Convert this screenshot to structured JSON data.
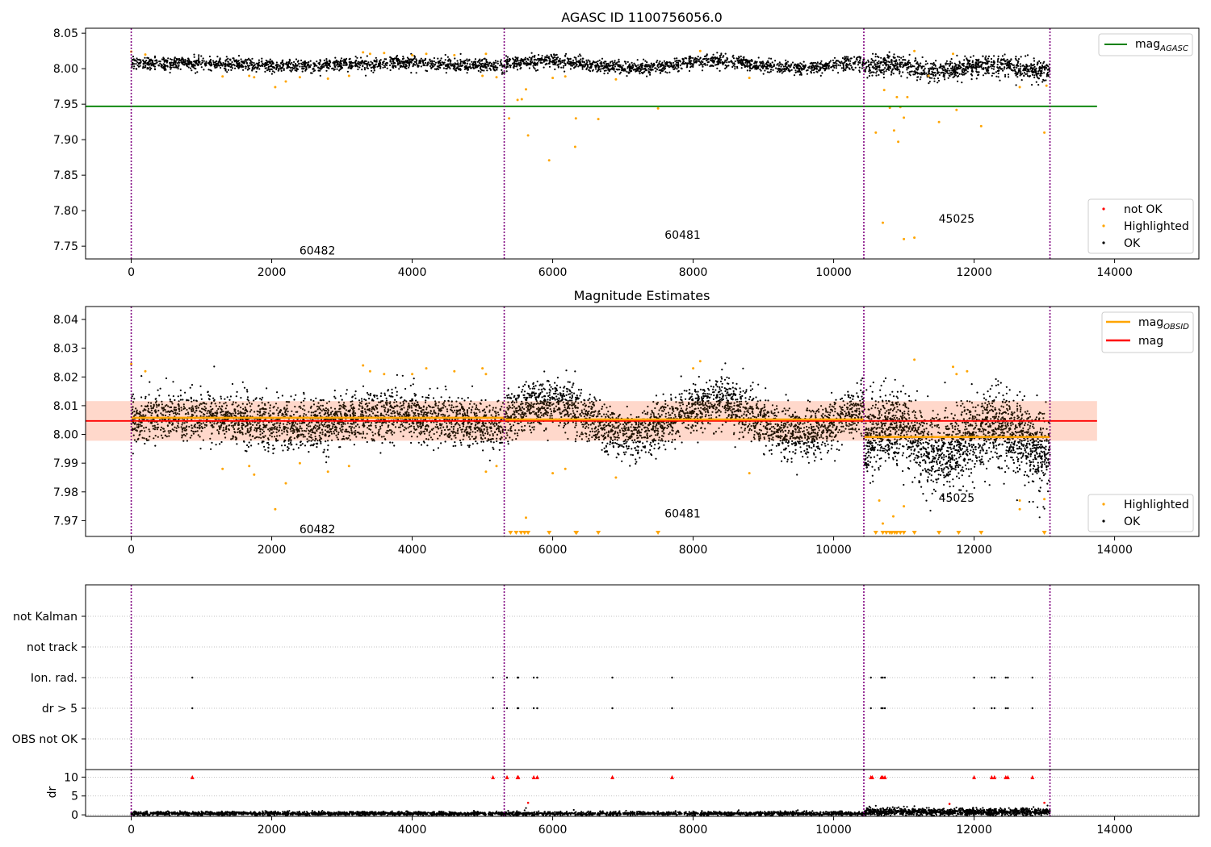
{
  "colors": {
    "ok": "#000000",
    "highlighted": "#ffa500",
    "not_ok": "#ff0000",
    "mag_agasc": "#008000",
    "mag_obsid": "#ffa500",
    "mag": "#ff0000",
    "obsid_divider": "#800080",
    "band": "#ffc0cb"
  },
  "chart_data": [
    {
      "type": "scatter",
      "title": "AGASC ID 1100756056.0",
      "xlim": [
        -650,
        15200
      ],
      "ylim": [
        7.732,
        8.057
      ],
      "x_ticks": [
        0,
        2000,
        4000,
        6000,
        8000,
        10000,
        12000,
        14000
      ],
      "x_tick_labels": [
        "0",
        "2000",
        "4000",
        "6000",
        "8000",
        "10000",
        "12000",
        "14000"
      ],
      "y_ticks": [
        7.75,
        7.8,
        7.85,
        7.9,
        7.95,
        8.0,
        8.05
      ],
      "y_tick_labels": [
        "7.75",
        "7.80",
        "7.85",
        "7.90",
        "7.95",
        "8.00",
        "8.05"
      ],
      "obsid_boundaries": [
        0,
        5310,
        10430,
        13080
      ],
      "obsid_labels": [
        {
          "text": "60482",
          "x": 2650,
          "y": 7.744
        },
        {
          "text": "60481",
          "x": 7850,
          "y": 7.766
        },
        {
          "text": "45025",
          "x": 11750,
          "y": 7.789
        }
      ],
      "mag_agasc": {
        "value": 7.947,
        "x_range": [
          -650,
          13750
        ]
      },
      "ok_segments": [
        {
          "x0": 0,
          "x1": 5310,
          "n": 1400,
          "center": 8.006,
          "spread": 0.0045,
          "wave_amp": 0.002,
          "wave_period": 3000,
          "seed": 11
        },
        {
          "x0": 5310,
          "x1": 10430,
          "n": 1400,
          "center": 8.006,
          "spread": 0.0045,
          "wave_amp": 0.005,
          "wave_period": 2400,
          "seed": 12
        },
        {
          "x0": 10430,
          "x1": 13080,
          "n": 900,
          "center": 8.001,
          "spread": 0.007,
          "wave_amp": 0.004,
          "wave_period": 1500,
          "seed": 13
        }
      ],
      "highlighted": [
        [
          0,
          8.024
        ],
        [
          200,
          8.02
        ],
        [
          1300,
          7.989
        ],
        [
          1680,
          7.99
        ],
        [
          1750,
          7.988
        ],
        [
          2050,
          7.974
        ],
        [
          2200,
          7.982
        ],
        [
          2400,
          7.988
        ],
        [
          2800,
          7.986
        ],
        [
          3100,
          7.99
        ],
        [
          3300,
          8.023
        ],
        [
          3400,
          8.021
        ],
        [
          3600,
          8.022
        ],
        [
          4000,
          8.019
        ],
        [
          4200,
          8.021
        ],
        [
          4600,
          8.019
        ],
        [
          5000,
          7.99
        ],
        [
          5050,
          8.021
        ],
        [
          5200,
          7.988
        ],
        [
          5380,
          7.93
        ],
        [
          5500,
          7.956
        ],
        [
          5560,
          7.957
        ],
        [
          5620,
          7.971
        ],
        [
          5650,
          7.906
        ],
        [
          6000,
          7.987
        ],
        [
          5950,
          7.871
        ],
        [
          6180,
          7.989
        ],
        [
          6330,
          7.93
        ],
        [
          6320,
          7.89
        ],
        [
          6650,
          7.929
        ],
        [
          6900,
          7.985
        ],
        [
          7500,
          7.944
        ],
        [
          8100,
          8.025
        ],
        [
          8800,
          7.987
        ],
        [
          10600,
          7.91
        ],
        [
          10700,
          7.783
        ],
        [
          10720,
          7.97
        ],
        [
          10800,
          7.945
        ],
        [
          10860,
          7.913
        ],
        [
          10900,
          7.96
        ],
        [
          10920,
          7.897
        ],
        [
          10950,
          7.946
        ],
        [
          11000,
          7.931
        ],
        [
          11050,
          7.96
        ],
        [
          11000,
          7.76
        ],
        [
          11150,
          7.762
        ],
        [
          11150,
          8.025
        ],
        [
          11500,
          7.925
        ],
        [
          11750,
          7.942
        ],
        [
          12100,
          7.919
        ],
        [
          12650,
          7.974
        ],
        [
          13000,
          7.91
        ],
        [
          13030,
          7.976
        ],
        [
          11700,
          8.021
        ],
        [
          11350,
          7.99
        ]
      ],
      "legend": [
        {
          "label": "not OK",
          "type": "point",
          "color": "#ff0000"
        },
        {
          "label": "Highlighted",
          "type": "point",
          "color": "#ffa500"
        },
        {
          "label": "OK",
          "type": "point",
          "color": "#000000"
        }
      ],
      "legend_line": {
        "main": "mag",
        "sub": "AGASC",
        "color": "#008000"
      }
    },
    {
      "type": "scatter",
      "title": "Magnitude Estimates",
      "xlim": [
        -650,
        15200
      ],
      "ylim": [
        7.9645,
        8.0445
      ],
      "x_ticks": [
        0,
        2000,
        4000,
        6000,
        8000,
        10000,
        12000,
        14000
      ],
      "x_tick_labels": [
        "0",
        "2000",
        "4000",
        "6000",
        "8000",
        "10000",
        "12000",
        "14000"
      ],
      "y_ticks": [
        7.97,
        7.98,
        7.99,
        8.0,
        8.01,
        8.02,
        8.03,
        8.04
      ],
      "y_tick_labels": [
        "7.97",
        "7.98",
        "7.99",
        "8.00",
        "8.01",
        "8.02",
        "8.03",
        "8.04"
      ],
      "obsid_boundaries": [
        0,
        5310,
        10430,
        13080
      ],
      "obsid_labels": [
        {
          "text": "60482",
          "x": 2650,
          "y": 7.967
        },
        {
          "text": "60481",
          "x": 7850,
          "y": 7.9725
        },
        {
          "text": "45025",
          "x": 11750,
          "y": 7.978
        }
      ],
      "mag": {
        "value": 8.0047,
        "band": [
          7.9978,
          8.0116
        ],
        "x_range": [
          -650,
          13750
        ]
      },
      "mag_obsid": [
        {
          "x0": 0,
          "x1": 5310,
          "value": 8.0058
        },
        {
          "x0": 5310,
          "x1": 10430,
          "value": 8.0052
        },
        {
          "x0": 10430,
          "x1": 13080,
          "value": 7.9991
        }
      ],
      "ok_segments": [
        {
          "x0": 0,
          "x1": 5310,
          "n": 2600,
          "center": 8.005,
          "spread": 0.0042,
          "wave_amp": 0.0018,
          "wave_period": 3000,
          "seed": 21
        },
        {
          "x0": 5310,
          "x1": 10430,
          "n": 2600,
          "center": 8.0055,
          "spread": 0.0042,
          "wave_amp": 0.0055,
          "wave_period": 2400,
          "seed": 22
        },
        {
          "x0": 10430,
          "x1": 13080,
          "n": 1900,
          "center": 7.998,
          "spread": 0.0065,
          "wave_amp": 0.0045,
          "wave_period": 1500,
          "seed": 23
        }
      ],
      "highlighted": [
        [
          0,
          8.0245
        ],
        [
          200,
          8.022
        ],
        [
          1300,
          7.988
        ],
        [
          1680,
          7.989
        ],
        [
          1750,
          7.986
        ],
        [
          2050,
          7.974
        ],
        [
          2200,
          7.983
        ],
        [
          2400,
          7.99
        ],
        [
          2800,
          7.987
        ],
        [
          3100,
          7.989
        ],
        [
          3300,
          8.024
        ],
        [
          3400,
          8.022
        ],
        [
          3600,
          8.021
        ],
        [
          4000,
          8.021
        ],
        [
          4200,
          8.023
        ],
        [
          4600,
          8.022
        ],
        [
          5000,
          8.023
        ],
        [
          5050,
          8.021
        ],
        [
          5200,
          7.989
        ],
        [
          5050,
          7.987
        ],
        [
          5620,
          7.971
        ],
        [
          6000,
          7.9865
        ],
        [
          6180,
          7.988
        ],
        [
          6900,
          7.985
        ],
        [
          8100,
          8.0255
        ],
        [
          8000,
          8.023
        ],
        [
          8800,
          7.9865
        ],
        [
          10650,
          7.977
        ],
        [
          10700,
          7.969
        ],
        [
          10850,
          7.9715
        ],
        [
          11000,
          7.975
        ],
        [
          11150,
          8.026
        ],
        [
          11700,
          8.0235
        ],
        [
          11750,
          8.021
        ],
        [
          11900,
          8.022
        ],
        [
          12650,
          7.977
        ],
        [
          12650,
          7.974
        ],
        [
          13000,
          7.9775
        ]
      ],
      "clipped_markers": [
        5400,
        5480,
        5550,
        5600,
        5650,
        5950,
        6330,
        6340,
        6650,
        7500,
        10600,
        10700,
        10750,
        10800,
        10830,
        10870,
        10900,
        10950,
        11000,
        11150,
        11500,
        11780,
        12100,
        13000
      ],
      "legend": [
        {
          "label": "Highlighted",
          "type": "point",
          "color": "#ffa500"
        },
        {
          "label": "OK",
          "type": "point",
          "color": "#000000"
        }
      ],
      "legend_lines": [
        {
          "main": "mag",
          "sub": "OBSID",
          "color": "#ffa500"
        },
        {
          "main": "mag",
          "sub": "",
          "color": "#ff0000"
        }
      ]
    },
    {
      "type": "scatter",
      "xlim": [
        -650,
        15200
      ],
      "categories": [
        "not Kalman",
        "not track",
        "Ion. rad.",
        "dr > 5",
        "OBS not OK"
      ],
      "flag_events": {
        "Ion. rad.": [
          870,
          5150,
          5350,
          5500,
          5510,
          5730,
          5780,
          6850,
          7700,
          10530,
          10680,
          10700,
          10730,
          12000,
          12250,
          12290,
          12450,
          12480,
          12830
        ],
        "dr > 5": [
          870,
          5150,
          5350,
          5500,
          5510,
          5730,
          5780,
          6850,
          7700,
          10530,
          10680,
          10700,
          10730,
          12000,
          12250,
          12290,
          12450,
          12480,
          12830
        ]
      }
    },
    {
      "type": "scatter",
      "ylabel": "dr",
      "xlim": [
        -650,
        15200
      ],
      "ylim": [
        -0.4,
        12
      ],
      "x_ticks": [
        0,
        2000,
        4000,
        6000,
        8000,
        10000,
        12000,
        14000
      ],
      "x_tick_labels": [
        "0",
        "2000",
        "4000",
        "6000",
        "8000",
        "10000",
        "12000",
        "14000"
      ],
      "y_ticks": [
        0,
        5,
        10
      ],
      "y_tick_labels": [
        "0",
        "5",
        "10"
      ],
      "clipped_value": 10,
      "clipped_x": [
        870,
        5150,
        5350,
        5500,
        5510,
        5730,
        5780,
        6850,
        7700,
        10530,
        10550,
        10680,
        10700,
        10730,
        12000,
        12250,
        12290,
        12450,
        12480,
        12830
      ],
      "ok_segments": [
        {
          "x0": 0,
          "x1": 10430,
          "n": 2600,
          "center": 0.35,
          "spread": 0.25,
          "seed": 31
        },
        {
          "x0": 10430,
          "x1": 13080,
          "n": 1100,
          "center": 0.8,
          "spread": 0.45,
          "seed": 32
        }
      ],
      "outliers": [
        [
          5600,
          1.2
        ],
        [
          5620,
          1.8
        ],
        [
          5650,
          3.2
        ],
        [
          6300,
          1.3
        ],
        [
          7500,
          0.9
        ],
        [
          10600,
          2.4
        ],
        [
          10800,
          1.8
        ],
        [
          11000,
          2.2
        ],
        [
          11150,
          2.3
        ],
        [
          11650,
          2.9
        ],
        [
          13000,
          3.2
        ],
        [
          13030,
          1.5
        ],
        [
          1000,
          0.9
        ],
        [
          2500,
          0.8
        ],
        [
          3300,
          0.8
        ],
        [
          8000,
          0.9
        ]
      ],
      "highlighted_outliers": [
        [
          5650,
          3.2
        ],
        [
          11650,
          2.9
        ],
        [
          13000,
          3.2
        ]
      ]
    }
  ]
}
